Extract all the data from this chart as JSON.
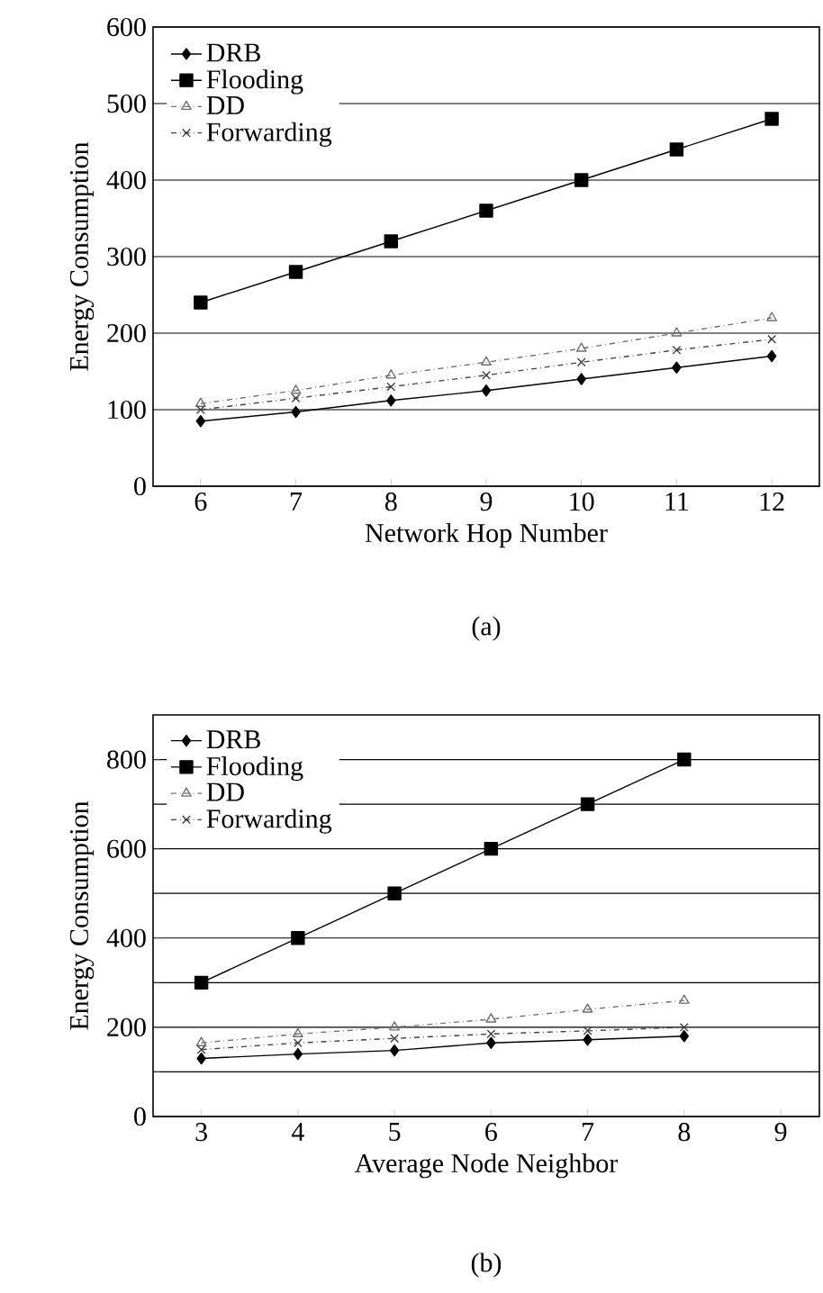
{
  "chart_data": [
    {
      "type": "line",
      "xlabel": "Network Hop Number",
      "ylabel": "Energy Consumption",
      "annotations": [
        "(a)"
      ],
      "x": [
        6,
        7,
        8,
        9,
        10,
        11,
        12
      ],
      "xlim": [
        5.5,
        12.5
      ],
      "ylim": [
        0,
        600
      ],
      "xticks": [
        6,
        7,
        8,
        9,
        10,
        11,
        12
      ],
      "yticks": [
        0,
        100,
        200,
        300,
        400,
        500,
        600
      ],
      "grid": "y",
      "legend": "top left",
      "series": [
        {
          "name": "DRB",
          "color": "#000000",
          "marker": "diamond",
          "line_style": "solid",
          "values": [
            85,
            97,
            112,
            125,
            140,
            155,
            170
          ]
        },
        {
          "name": "Flooding",
          "color": "#000000",
          "marker": "square",
          "line_style": "solid",
          "values": [
            240,
            280,
            320,
            360,
            400,
            440,
            480
          ]
        },
        {
          "name": "DD",
          "color": "#707070",
          "marker": "triangle",
          "line_style": "dashdot",
          "values": [
            108,
            125,
            145,
            162,
            180,
            200,
            220
          ]
        },
        {
          "name": "Forwarding",
          "color": "#404040",
          "marker": "cross",
          "line_style": "dashdot",
          "values": [
            100,
            115,
            130,
            145,
            162,
            178,
            192
          ]
        }
      ]
    },
    {
      "type": "line",
      "xlabel": "Average Node Neighbor",
      "ylabel": "Energy Consumption",
      "annotations": [
        "(b)"
      ],
      "x": [
        3,
        4,
        5,
        6,
        7,
        8
      ],
      "xlim": [
        2.5,
        9.4
      ],
      "ylim": [
        0,
        900
      ],
      "xticks": [
        3,
        4,
        5,
        6,
        7,
        8,
        9
      ],
      "yticks": [
        0,
        {
          "value": 100,
          "label": null
        },
        200,
        {
          "value": 300,
          "label": null
        },
        400,
        {
          "value": 500,
          "label": null
        },
        600,
        {
          "value": 700,
          "label": null
        },
        800
      ],
      "grid": "y",
      "legend": "top left",
      "series": [
        {
          "name": "DRB",
          "color": "#000000",
          "marker": "diamond",
          "line_style": "solid",
          "values": [
            130,
            140,
            148,
            165,
            172,
            180
          ]
        },
        {
          "name": "Flooding",
          "color": "#000000",
          "marker": "square",
          "line_style": "solid",
          "values": [
            300,
            400,
            500,
            600,
            700,
            800
          ]
        },
        {
          "name": "DD",
          "color": "#707070",
          "marker": "triangle",
          "line_style": "dashdot",
          "values": [
            165,
            185,
            200,
            218,
            240,
            260
          ]
        },
        {
          "name": "Forwarding",
          "color": "#404040",
          "marker": "cross",
          "line_style": "dashdot",
          "values": [
            150,
            165,
            175,
            185,
            192,
            200
          ]
        }
      ]
    }
  ]
}
